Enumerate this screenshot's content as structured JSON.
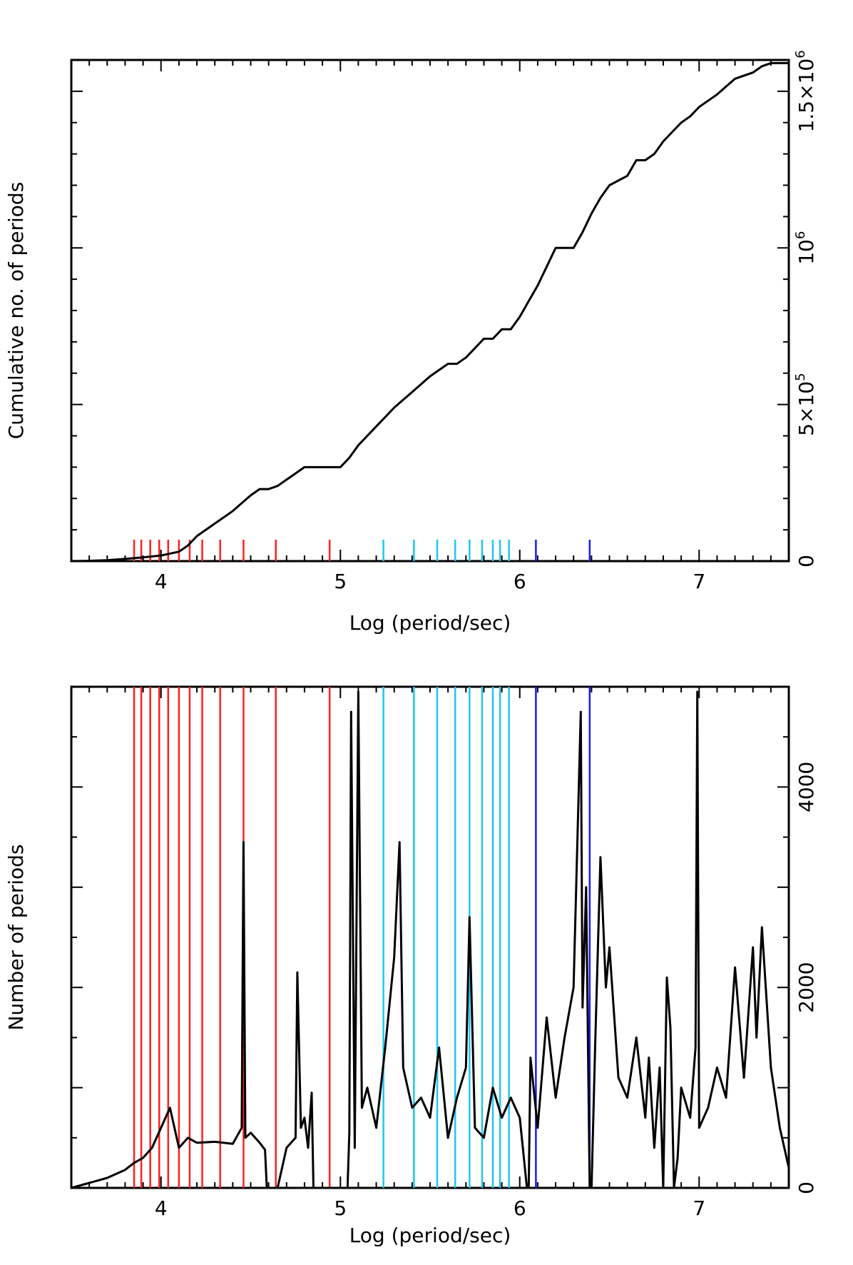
{
  "colors": {
    "red": "#ff2020",
    "cyan": "#1ec8f0",
    "blue": "#1a1aff",
    "line": "#000000"
  },
  "chart_data": [
    {
      "type": "line",
      "xlabel": "Log (period/sec)",
      "ylabel": "Cumulative no. of periods",
      "xlim": [
        3.5,
        7.5
      ],
      "ylim": [
        0,
        1600000
      ],
      "x_ticks": [
        {
          "value": 4,
          "label": "4"
        },
        {
          "value": 5,
          "label": "5"
        },
        {
          "value": 6,
          "label": "6"
        },
        {
          "value": 7,
          "label": "7"
        }
      ],
      "y_ticks": [
        {
          "value": 0,
          "label": "0",
          "base": "0",
          "exp": ""
        },
        {
          "value": 500000,
          "label": "5×10^5",
          "base": "5×10",
          "exp": "5"
        },
        {
          "value": 1000000,
          "label": "10^6",
          "base": "10",
          "exp": "6"
        },
        {
          "value": 1500000,
          "label": "1.5×10^6",
          "base": "1.5×10",
          "exp": "6"
        }
      ],
      "y_axis_side": "right",
      "series": [
        {
          "x": [
            3.5,
            3.6,
            3.7,
            3.8,
            3.9,
            4.0,
            4.1,
            4.15,
            4.2,
            4.3,
            4.4,
            4.5,
            4.55,
            4.6,
            4.65,
            4.7,
            4.75,
            4.8,
            4.85,
            4.9,
            4.95,
            5.0,
            5.05,
            5.1,
            5.2,
            5.3,
            5.4,
            5.5,
            5.6,
            5.65,
            5.7,
            5.75,
            5.8,
            5.85,
            5.9,
            5.95,
            6.0,
            6.05,
            6.1,
            6.2,
            6.3,
            6.35,
            6.4,
            6.45,
            6.5,
            6.6,
            6.65,
            6.7,
            6.75,
            6.8,
            6.85,
            6.9,
            6.95,
            7.0,
            7.1,
            7.2,
            7.3,
            7.35,
            7.4,
            7.45,
            7.5
          ],
          "y": [
            0,
            1000,
            3000,
            7000,
            12000,
            18000,
            30000,
            50000,
            80000,
            120000,
            160000,
            210000,
            230000,
            230000,
            240000,
            260000,
            280000,
            300000,
            300000,
            300000,
            300000,
            300000,
            330000,
            370000,
            430000,
            490000,
            540000,
            590000,
            630000,
            630000,
            650000,
            680000,
            710000,
            710000,
            740000,
            740000,
            780000,
            830000,
            880000,
            1000000,
            1000000,
            1050000,
            1110000,
            1160000,
            1200000,
            1230000,
            1280000,
            1280000,
            1300000,
            1340000,
            1370000,
            1400000,
            1420000,
            1450000,
            1490000,
            1540000,
            1560000,
            1580000,
            1590000,
            1590000,
            1590000
          ]
        }
      ],
      "markers": {
        "red": [
          3.85,
          3.89,
          3.94,
          3.99,
          4.04,
          4.1,
          4.16,
          4.23,
          4.33,
          4.46,
          4.64,
          4.94
        ],
        "cyan": [
          5.24,
          5.41,
          5.54,
          5.64,
          5.72,
          5.79,
          5.85,
          5.89,
          5.94
        ],
        "blue": [
          6.09,
          6.39
        ]
      }
    },
    {
      "type": "line",
      "xlabel": "Log (period/sec)",
      "ylabel": "Number of periods",
      "xlim": [
        3.5,
        7.5
      ],
      "ylim": [
        0,
        5000
      ],
      "x_ticks": [
        {
          "value": 4,
          "label": "4"
        },
        {
          "value": 5,
          "label": "5"
        },
        {
          "value": 6,
          "label": "6"
        },
        {
          "value": 7,
          "label": "7"
        }
      ],
      "y_ticks": [
        {
          "value": 0,
          "label": "0"
        },
        {
          "value": 2000,
          "label": "2000"
        },
        {
          "value": 4000,
          "label": "4000"
        }
      ],
      "y_axis_side": "right",
      "series": [
        {
          "x": [
            3.5,
            3.6,
            3.7,
            3.8,
            3.85,
            3.9,
            3.95,
            4.0,
            4.05,
            4.1,
            4.15,
            4.2,
            4.3,
            4.4,
            4.45,
            4.46,
            4.47,
            4.5,
            4.55,
            4.58,
            4.59,
            4.6,
            4.64,
            4.65,
            4.7,
            4.75,
            4.76,
            4.78,
            4.8,
            4.82,
            4.84,
            4.85,
            4.86,
            4.9,
            4.95,
            5.0,
            5.04,
            5.05,
            5.06,
            5.08,
            5.1,
            5.12,
            5.15,
            5.2,
            5.25,
            5.3,
            5.33,
            5.35,
            5.4,
            5.45,
            5.5,
            5.55,
            5.6,
            5.65,
            5.7,
            5.72,
            5.75,
            5.8,
            5.85,
            5.9,
            5.95,
            6.0,
            6.04,
            6.05,
            6.06,
            6.1,
            6.15,
            6.2,
            6.25,
            6.3,
            6.34,
            6.35,
            6.37,
            6.39,
            6.4,
            6.42,
            6.45,
            6.48,
            6.5,
            6.55,
            6.6,
            6.65,
            6.7,
            6.72,
            6.75,
            6.78,
            6.8,
            6.82,
            6.84,
            6.86,
            6.88,
            6.9,
            6.95,
            6.98,
            6.99,
            7.0,
            7.05,
            7.1,
            7.15,
            7.2,
            7.25,
            7.3,
            7.32,
            7.35,
            7.4,
            7.45,
            7.5
          ],
          "y": [
            0,
            50,
            100,
            180,
            250,
            300,
            400,
            600,
            800,
            400,
            500,
            450,
            460,
            440,
            600,
            3450,
            500,
            550,
            450,
            380,
            0,
            0,
            0,
            0,
            400,
            500,
            2150,
            600,
            700,
            400,
            950,
            0,
            0,
            0,
            0,
            0,
            0,
            550,
            4750,
            400,
            4950,
            800,
            1000,
            600,
            1400,
            2300,
            3450,
            1200,
            800,
            900,
            700,
            1400,
            500,
            900,
            1200,
            2700,
            600,
            500,
            1000,
            700,
            900,
            700,
            0,
            0,
            1300,
            600,
            1700,
            900,
            1500,
            2000,
            4750,
            1800,
            3000,
            0,
            0,
            1400,
            3300,
            2000,
            2400,
            1100,
            900,
            1500,
            700,
            1300,
            400,
            1200,
            0,
            2100,
            1600,
            0,
            300,
            1000,
            700,
            1400,
            4950,
            600,
            800,
            1200,
            900,
            2200,
            1100,
            2400,
            1500,
            2600,
            1200,
            600,
            200
          ]
        }
      ],
      "markers": {
        "red": [
          3.85,
          3.89,
          3.94,
          3.99,
          4.04,
          4.1,
          4.16,
          4.23,
          4.33,
          4.46,
          4.64,
          4.94
        ],
        "cyan": [
          5.24,
          5.41,
          5.54,
          5.64,
          5.72,
          5.79,
          5.85,
          5.89,
          5.94
        ],
        "blue": [
          6.09,
          6.39
        ]
      }
    }
  ]
}
